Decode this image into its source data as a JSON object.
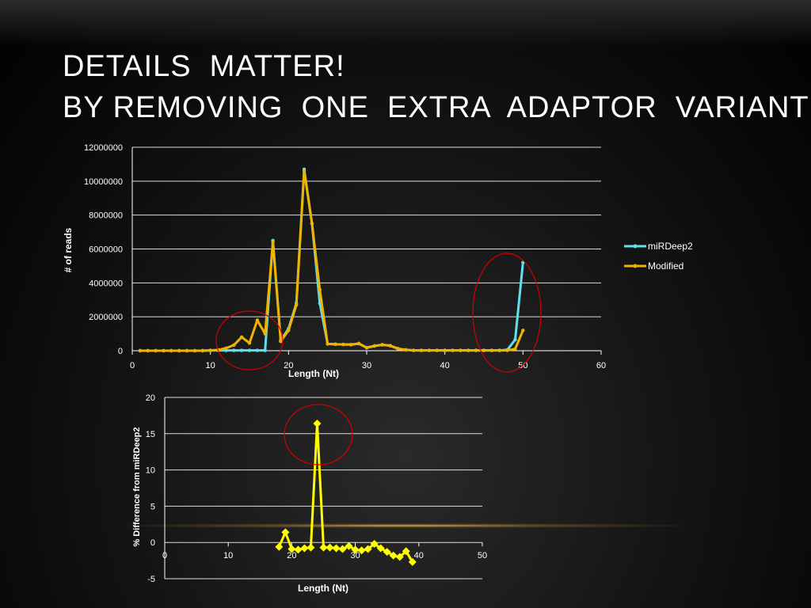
{
  "slide": {
    "title_line1": "Details  matter!",
    "title_line2": "By removing  one  extra  adaptor  variant"
  },
  "colors": {
    "mirdeep2": "#5fe0ef",
    "modified": "#f0b400",
    "diff": "#ffff00",
    "circle": "#d40000",
    "grid": "#ffffff"
  },
  "chart_data": [
    {
      "type": "line",
      "xlabel": "Length (Nt)",
      "ylabel": "# of reads",
      "xlim": [
        0,
        60
      ],
      "ylim": [
        0,
        12000000
      ],
      "x_ticks": [
        "0",
        "10",
        "20",
        "30",
        "40",
        "50",
        "60"
      ],
      "y_ticks": [
        "0",
        "2000000",
        "4000000",
        "6000000",
        "8000000",
        "10000000",
        "12000000"
      ],
      "grid": true,
      "legend_position": "right",
      "x": [
        1,
        2,
        3,
        4,
        5,
        6,
        7,
        8,
        9,
        10,
        11,
        12,
        13,
        14,
        15,
        16,
        17,
        18,
        19,
        20,
        21,
        22,
        23,
        24,
        25,
        26,
        27,
        28,
        29,
        30,
        31,
        32,
        33,
        34,
        35,
        36,
        37,
        38,
        39,
        40,
        41,
        42,
        43,
        44,
        45,
        46,
        47,
        48,
        49,
        50
      ],
      "series": [
        {
          "name": "miRDeep2",
          "values": [
            0,
            0,
            0,
            0,
            0,
            0,
            0,
            0,
            0,
            20000,
            20000,
            20000,
            20000,
            20000,
            20000,
            20000,
            20000,
            6500000,
            600000,
            1300000,
            2800000,
            10700000,
            7500000,
            2800000,
            400000,
            380000,
            370000,
            360000,
            420000,
            180000,
            280000,
            350000,
            300000,
            120000,
            50000,
            20000,
            20000,
            20000,
            20000,
            20000,
            20000,
            20000,
            20000,
            20000,
            20000,
            20000,
            20000,
            50000,
            650000,
            5200000
          ]
        },
        {
          "name": "Modified",
          "values": [
            0,
            0,
            0,
            0,
            0,
            0,
            0,
            0,
            0,
            20000,
            50000,
            150000,
            330000,
            800000,
            450000,
            1800000,
            1000000,
            6400000,
            550000,
            1200000,
            2700000,
            10600000,
            7500000,
            3600000,
            400000,
            380000,
            370000,
            360000,
            420000,
            180000,
            280000,
            350000,
            300000,
            120000,
            50000,
            20000,
            20000,
            20000,
            20000,
            20000,
            20000,
            20000,
            20000,
            20000,
            20000,
            20000,
            20000,
            20000,
            100000,
            1200000
          ]
        }
      ]
    },
    {
      "type": "line",
      "xlabel": "Length (Nt)",
      "ylabel": "% Difference from miRDeep2",
      "xlim": [
        0,
        50
      ],
      "ylim": [
        -5,
        20
      ],
      "x_ticks": [
        "0",
        "10",
        "20",
        "30",
        "40",
        "50"
      ],
      "y_ticks": [
        "-5",
        "0",
        "5",
        "10",
        "15",
        "20"
      ],
      "grid": true,
      "series": [
        {
          "name": "",
          "x": [
            18,
            19,
            20,
            21,
            22,
            23,
            24,
            25,
            26,
            27,
            28,
            29,
            30,
            31,
            32,
            33,
            34,
            35,
            36,
            37,
            38,
            39
          ],
          "values": [
            -0.6,
            1.4,
            -0.9,
            -1.0,
            -0.8,
            -0.7,
            16.4,
            -0.7,
            -0.7,
            -0.8,
            -0.9,
            -0.5,
            -1.0,
            -1.1,
            -0.9,
            -0.2,
            -0.8,
            -1.3,
            -1.8,
            -2.0,
            -1.2,
            -2.7
          ]
        }
      ]
    }
  ]
}
